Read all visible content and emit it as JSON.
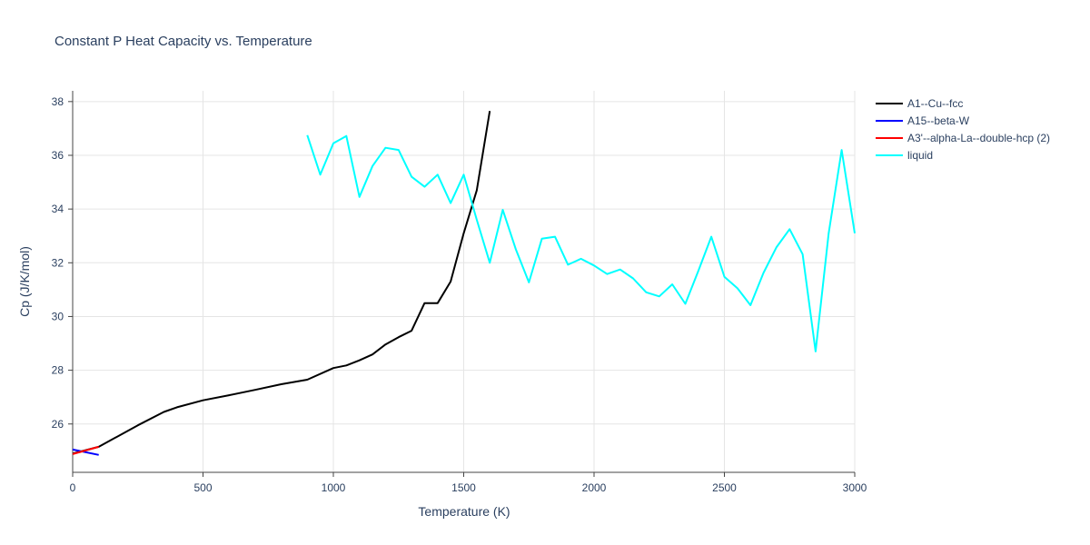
{
  "chart_data": {
    "type": "line",
    "title": "Constant P Heat Capacity vs. Temperature",
    "xlabel": "Temperature (K)",
    "ylabel": "Cp (J/K/mol)",
    "xlim": [
      0,
      3000
    ],
    "ylim": [
      24.2,
      38.4
    ],
    "x_ticks": [
      0,
      500,
      1000,
      1500,
      2000,
      2500,
      3000
    ],
    "x_tick_labels": [
      "0",
      "500",
      "1000",
      "1500",
      "2000",
      "2500",
      "3000"
    ],
    "y_ticks": [
      26,
      28,
      30,
      32,
      34,
      36,
      38
    ],
    "y_tick_labels": [
      "26",
      "28",
      "30",
      "32",
      "34",
      "36",
      "38"
    ],
    "grid": true,
    "legend_position": "top-right",
    "series": [
      {
        "name": "A1--Cu--fcc",
        "color": "#000000",
        "x": [
          0,
          100,
          250,
          350,
          400,
          500,
          600,
          700,
          800,
          900,
          1000,
          1050,
          1100,
          1150,
          1200,
          1250,
          1300,
          1350,
          1400,
          1450,
          1500,
          1550,
          1600
        ],
        "y": [
          24.9,
          25.15,
          25.95,
          26.45,
          26.62,
          26.88,
          27.07,
          27.27,
          27.48,
          27.65,
          28.08,
          28.18,
          28.37,
          28.59,
          28.96,
          29.23,
          29.47,
          30.5,
          30.5,
          31.3,
          33.1,
          34.7,
          37.65
        ]
      },
      {
        "name": "A15--beta-W",
        "color": "#0000ff",
        "x": [
          0,
          100
        ],
        "y": [
          25.05,
          24.85
        ]
      },
      {
        "name": "A3'--alpha-La--double-hcp (2)",
        "color": "#ff0000",
        "x": [
          0,
          100
        ],
        "y": [
          24.88,
          25.15
        ]
      },
      {
        "name": "liquid",
        "color": "#00ffff",
        "x": [
          900,
          950,
          1000,
          1050,
          1100,
          1150,
          1200,
          1250,
          1300,
          1350,
          1400,
          1450,
          1500,
          1550,
          1600,
          1650,
          1700,
          1750,
          1800,
          1850,
          1900,
          1950,
          2000,
          2050,
          2100,
          2150,
          2200,
          2250,
          2300,
          2350,
          2400,
          2450,
          2500,
          2550,
          2600,
          2650,
          2700,
          2750,
          2800,
          2850,
          2900,
          2950,
          3000
        ],
        "y": [
          36.75,
          35.28,
          36.45,
          36.72,
          34.45,
          35.6,
          36.28,
          36.2,
          35.2,
          34.83,
          35.28,
          34.22,
          35.28,
          33.6,
          32.0,
          33.97,
          32.5,
          31.27,
          32.9,
          32.97,
          31.93,
          32.15,
          31.9,
          31.58,
          31.75,
          31.42,
          30.9,
          30.75,
          31.2,
          30.47,
          31.7,
          32.97,
          31.48,
          31.05,
          30.42,
          31.62,
          32.58,
          33.25,
          32.32,
          28.7,
          33.1,
          36.2,
          33.1
        ]
      }
    ]
  }
}
